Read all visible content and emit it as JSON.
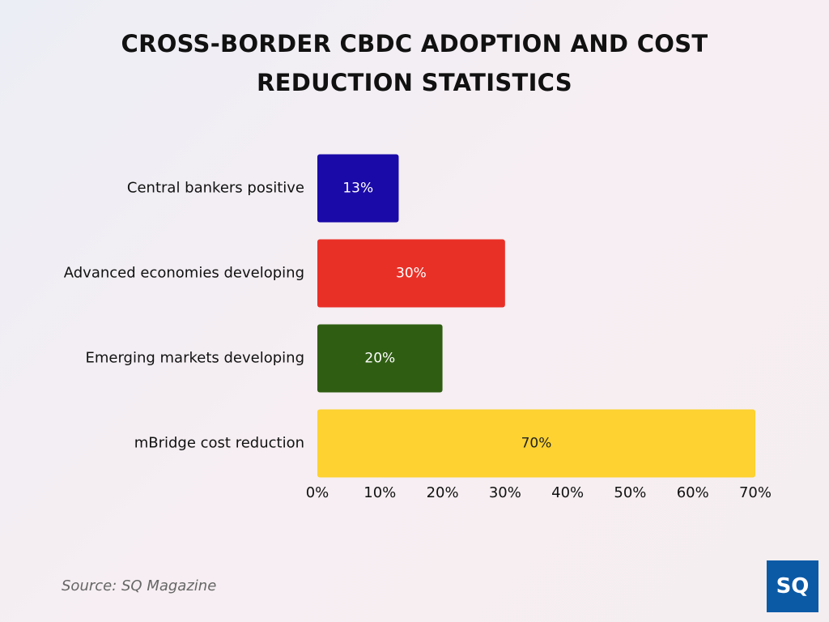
{
  "chart_data": {
    "type": "bar",
    "orientation": "horizontal",
    "title": "CROSS-BORDER CBDC ADOPTION AND COST REDUCTION STATISTICS",
    "categories": [
      "Central bankers positive",
      "Advanced economies developing",
      "Emerging markets developing",
      "mBridge cost reduction"
    ],
    "values": [
      13,
      30,
      20,
      70
    ],
    "value_labels": [
      "13%",
      "30%",
      "20%",
      "70%"
    ],
    "colors": [
      "#1a0aa8",
      "#e93027",
      "#2f5e12",
      "#fdd231"
    ],
    "xlim": [
      0,
      70
    ],
    "xticks": [
      {
        "value": 0,
        "label": "0%"
      },
      {
        "value": 10,
        "label": "10%"
      },
      {
        "value": 20,
        "label": "20%"
      },
      {
        "value": 30,
        "label": "30%"
      },
      {
        "value": 40,
        "label": "40%"
      },
      {
        "value": 50,
        "label": "50%"
      },
      {
        "value": 60,
        "label": "60%"
      },
      {
        "value": 70,
        "label": "70%"
      }
    ],
    "grid": false,
    "source": "Source: SQ Magazine",
    "logo": "SQ"
  }
}
